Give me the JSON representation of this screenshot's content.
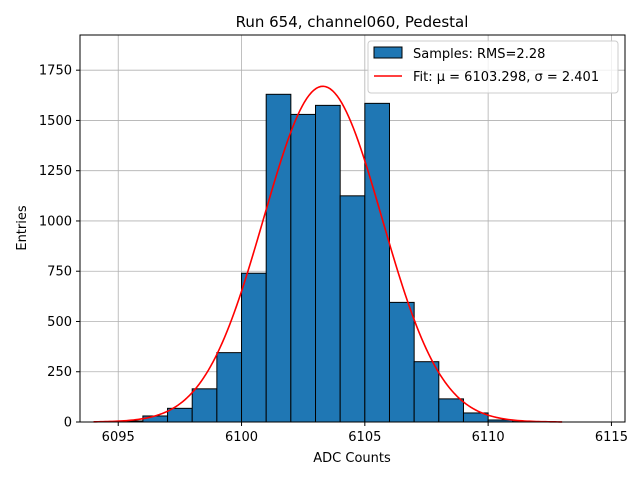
{
  "chart_data": {
    "type": "bar",
    "title": "Run 654, channel060, Pedestal",
    "xlabel": "ADC Counts",
    "ylabel": "Entries",
    "xlim": [
      6093.45,
      6115.55
    ],
    "ylim": [
      0,
      1925
    ],
    "xticks": [
      6095,
      6100,
      6105,
      6110,
      6115
    ],
    "yticks": [
      0,
      250,
      500,
      750,
      1000,
      1250,
      1500,
      1750
    ],
    "grid": true,
    "legend_placement": "top-right",
    "histogram": {
      "name": "Samples: RMS=2.28",
      "color": "#1f77b4",
      "bin_width": 1,
      "bin_starts": [
        6094,
        6095,
        6096,
        6097,
        6098,
        6099,
        6100,
        6101,
        6102,
        6103,
        6104,
        6105,
        6106,
        6107,
        6108,
        6109,
        6110,
        6111,
        6112,
        6113,
        6114
      ],
      "values": [
        0,
        5,
        30,
        68,
        165,
        345,
        740,
        1630,
        1530,
        1575,
        1125,
        1585,
        595,
        300,
        115,
        45,
        10,
        2,
        0,
        0,
        0
      ]
    },
    "fit": {
      "name": "Fit: μ = 6103.298, σ = 2.401",
      "color": "#ff0000",
      "mu": 6103.298,
      "sigma": 2.401,
      "amplitude": 1670,
      "x_range": [
        6094,
        6113
      ]
    }
  }
}
